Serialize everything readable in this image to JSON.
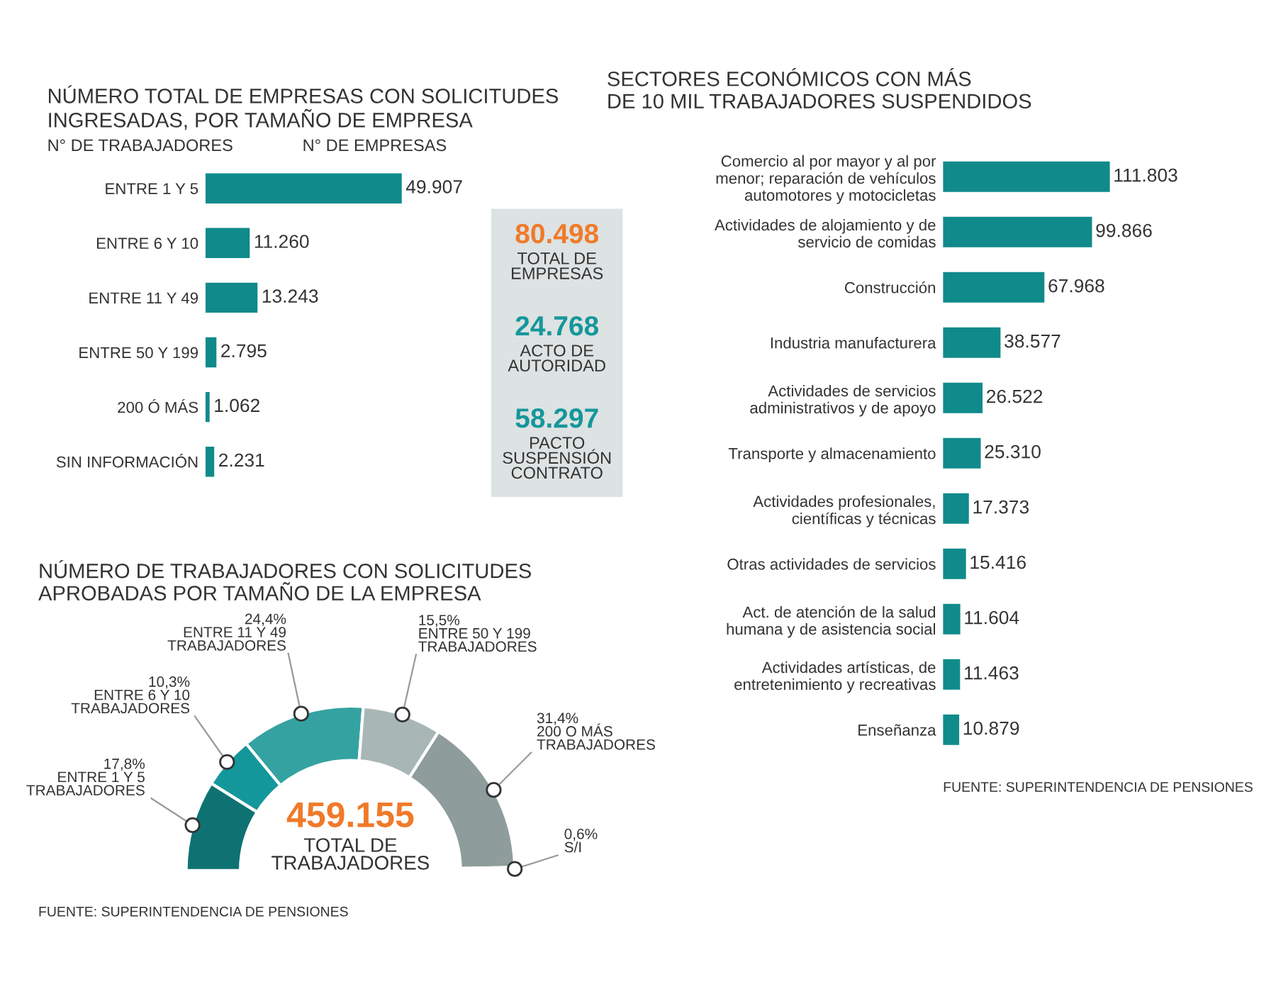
{
  "chart_data": [
    {
      "type": "bar",
      "orientation": "horizontal",
      "title": "NÚMERO TOTAL DE EMPRESAS CON SOLICITUDES\nINGRESADAS, POR TAMAÑO DE EMPRESA",
      "ylabel": "N° DE TRABAJADORES",
      "xlabel": "N° DE EMPRESAS",
      "categories": [
        "ENTRE 1 Y 5",
        "ENTRE 6 Y 10",
        "ENTRE 11 Y 49",
        "ENTRE 50 Y 199",
        "200 Ó MÁS",
        "SIN INFORMACIÓN"
      ],
      "values": [
        49907,
        11260,
        13243,
        2795,
        1062,
        2231
      ],
      "value_labels": [
        "49.907",
        "11.260",
        "13.243",
        "2.795",
        "1.062",
        "2.231"
      ],
      "color": "#108a8a"
    },
    {
      "type": "other",
      "annotations": [
        "80.498",
        "TOTAL DE\nEMPRESAS",
        "24.768",
        "ACTO DE\nAUTORIDAD",
        "58.297",
        "PACTO\nSUSPENSIÓN\nCONTRATO"
      ]
    },
    {
      "type": "bar",
      "orientation": "horizontal",
      "title": "SECTORES ECONÓMICOS CON MÁS\nDE 10 MIL TRABAJADORES SUSPENDIDOS",
      "categories": [
        "Comercio al por mayor y al por\nmenor; reparación de vehículos\nautomotores y motocicletas",
        "Actividades de alojamiento y de\nservicio de comidas",
        "Construcción",
        "Industria manufacturera",
        "Actividades de servicios\nadministrativos y de apoyo",
        "Transporte y almacenamiento",
        "Actividades profesionales,\ncientíficas y técnicas",
        "Otras actividades de servicios",
        "Act. de atención de la salud\nhumana y de asistencia social",
        "Actividades artísticas, de\nentretenimiento y recreativas",
        "Enseñanza"
      ],
      "values": [
        111803,
        99866,
        67968,
        38577,
        26522,
        25310,
        17373,
        15416,
        11604,
        11463,
        10879
      ],
      "value_labels": [
        "111.803",
        "99.866",
        "67.968",
        "38.577",
        "26.522",
        "25.310",
        "17.373",
        "15.416",
        "11.604",
        "11.463",
        "10.879"
      ],
      "color": "#108a8a",
      "annotations": [
        "FUENTE: SUPERINTENDENCIA DE PENSIONES"
      ]
    },
    {
      "type": "donut",
      "title": "NÚMERO DE TRABAJADORES CON SOLICITUDES\nAPROBADAS POR TAMAÑO DE LA EMPRESA",
      "categories": [
        "ENTRE 1 Y 5\nTRABAJADORES",
        "ENTRE 6 Y 10\nTRABAJADORES",
        "ENTRE 11 Y 49\nTRABAJADORES",
        "ENTRE 50 Y 199\nTRABAJADORES",
        "200 O MÁS\nTRABAJADORES",
        "S/I"
      ],
      "values": [
        17.8,
        10.3,
        24.4,
        15.5,
        31.4,
        0.6
      ],
      "value_labels": [
        "17,8%",
        "10,3%",
        "24,4%",
        "15,5%",
        "31,4%",
        "0,6%"
      ],
      "colors": [
        "#0f7272",
        "#14979b",
        "#35a2a2",
        "#a8b6b6",
        "#8f9c9c",
        "#6e7d7d"
      ],
      "annotations": [
        "459.155",
        "TOTAL DE\nTRABAJADORES",
        "FUENTE: SUPERINTENDENCIA DE PENSIONES"
      ]
    }
  ]
}
